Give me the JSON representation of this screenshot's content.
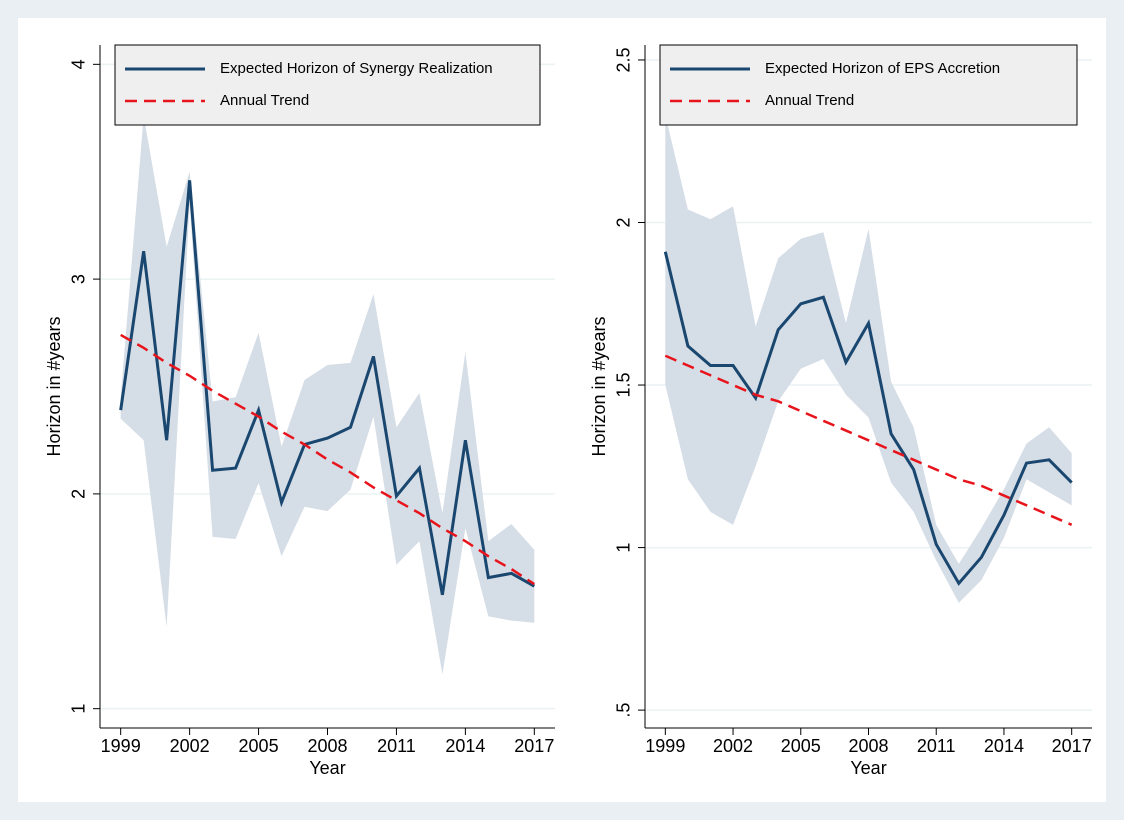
{
  "chart_data": [
    {
      "type": "line",
      "ylabel": "Horizon in #years",
      "xlabel": "Year",
      "x": [
        1999,
        2000,
        2001,
        2002,
        2003,
        2004,
        2005,
        2006,
        2007,
        2008,
        2009,
        2010,
        2011,
        2012,
        2013,
        2014,
        2015,
        2016,
        2017
      ],
      "xlim": [
        1998.1,
        2017.9
      ],
      "xticks": [
        1999,
        2002,
        2005,
        2008,
        2011,
        2014,
        2017
      ],
      "ylim": [
        0.91,
        4.09
      ],
      "yticks": [
        1,
        2,
        3,
        4
      ],
      "grid": true,
      "legend": "top",
      "band": {
        "color": "#d5dde6",
        "lower": [
          2.35,
          2.25,
          1.38,
          3.35,
          1.8,
          1.79,
          2.05,
          1.71,
          1.94,
          1.92,
          2.02,
          2.36,
          1.67,
          1.78,
          1.16,
          1.84,
          1.43,
          1.41,
          1.4
        ],
        "upper": [
          2.45,
          3.76,
          3.15,
          3.5,
          2.43,
          2.45,
          2.75,
          2.22,
          2.53,
          2.6,
          2.61,
          2.93,
          2.31,
          2.47,
          1.91,
          2.66,
          1.78,
          1.86,
          1.74
        ]
      },
      "series": [
        {
          "name": "Expected Horizon of Synergy Realization",
          "color": "#1a476f",
          "style": "solid",
          "values": [
            2.39,
            3.13,
            2.25,
            3.46,
            2.11,
            2.12,
            2.39,
            1.96,
            2.23,
            2.26,
            2.31,
            2.64,
            1.99,
            2.12,
            1.53,
            2.25,
            1.61,
            1.63,
            1.57
          ]
        },
        {
          "name": "Annual Trend",
          "color": "#e8141c",
          "style": "dashed",
          "values": [
            2.74,
            2.68,
            2.61,
            2.55,
            2.48,
            2.42,
            2.36,
            2.29,
            2.23,
            2.16,
            2.1,
            2.03,
            1.97,
            1.91,
            1.84,
            1.78,
            1.71,
            1.65,
            1.58
          ]
        }
      ]
    },
    {
      "type": "line",
      "ylabel": "Horizon in #years",
      "xlabel": "Year",
      "x": [
        1999,
        2000,
        2001,
        2002,
        2003,
        2004,
        2005,
        2006,
        2007,
        2008,
        2009,
        2010,
        2011,
        2012,
        2013,
        2014,
        2015,
        2016,
        2017
      ],
      "xlim": [
        1998.1,
        2017.9
      ],
      "xticks": [
        1999,
        2002,
        2005,
        2008,
        2011,
        2014,
        2017
      ],
      "ylim": [
        0.445,
        2.546
      ],
      "yticks": [
        {
          "value": 0.5,
          "label": ".5"
        },
        1,
        1.5,
        2,
        2.5
      ],
      "grid": true,
      "legend": "top",
      "band": {
        "color": "#d5dde6",
        "lower": [
          1.5,
          1.21,
          1.11,
          1.07,
          1.25,
          1.45,
          1.55,
          1.58,
          1.47,
          1.4,
          1.2,
          1.11,
          0.96,
          0.83,
          0.9,
          1.03,
          1.21,
          1.17,
          1.13
        ],
        "upper": [
          2.33,
          2.04,
          2.01,
          2.05,
          1.68,
          1.89,
          1.95,
          1.97,
          1.69,
          1.98,
          1.51,
          1.37,
          1.07,
          0.95,
          1.06,
          1.18,
          1.32,
          1.37,
          1.29
        ]
      },
      "series": [
        {
          "name": "Expected Horizon of EPS Accretion",
          "color": "#1a476f",
          "style": "solid",
          "values": [
            1.91,
            1.62,
            1.56,
            1.56,
            1.46,
            1.67,
            1.75,
            1.77,
            1.57,
            1.69,
            1.35,
            1.24,
            1.01,
            0.89,
            0.97,
            1.1,
            1.26,
            1.27,
            1.2
          ]
        },
        {
          "name": "Annual Trend",
          "color": "#e8141c",
          "style": "dashed",
          "values": [
            1.59,
            1.56,
            1.53,
            1.5,
            1.47,
            1.45,
            1.42,
            1.39,
            1.36,
            1.33,
            1.3,
            1.27,
            1.24,
            1.21,
            1.19,
            1.16,
            1.13,
            1.1,
            1.07
          ]
        }
      ]
    }
  ]
}
